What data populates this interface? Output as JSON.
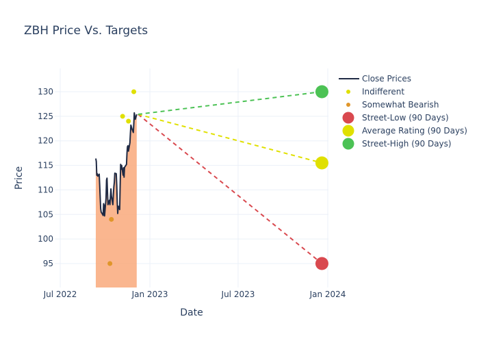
{
  "chart_data": {
    "type": "line",
    "title": "ZBH Price Vs. Targets",
    "xlabel": "Date",
    "ylabel": "Price",
    "x_ticks": [
      {
        "date": "2022-07-01",
        "label": "Jul 2022"
      },
      {
        "date": "2023-01-01",
        "label": "Jan 2023"
      },
      {
        "date": "2023-07-01",
        "label": "Jul 2023"
      },
      {
        "date": "2024-01-01",
        "label": "Jan 2024"
      }
    ],
    "y_ticks": [
      95,
      100,
      105,
      110,
      115,
      120,
      125,
      130
    ],
    "xlim": [
      "2022-06-15",
      "2024-01-25"
    ],
    "ylim": [
      90.2,
      134.8
    ],
    "grid": true,
    "legend_position": "top-right",
    "colors": {
      "close": "#1f2a44",
      "fill": "#f9a97b",
      "indifferent": "#e0e000",
      "somewhat_bearish": "#e0962a",
      "street_low": "#d9494f",
      "average": "#e0e000",
      "street_high": "#4cc255",
      "grid": "#ebf0f8"
    },
    "series": [
      {
        "name": "Close Prices",
        "type": "line-area",
        "points": [
          [
            "2022-09-12",
            116.4
          ],
          [
            "2022-09-13",
            115.8
          ],
          [
            "2022-09-14",
            113.0
          ],
          [
            "2022-09-15",
            113.3
          ],
          [
            "2022-09-16",
            112.8
          ],
          [
            "2022-09-19",
            113.2
          ],
          [
            "2022-09-20",
            111.0
          ],
          [
            "2022-09-21",
            108.5
          ],
          [
            "2022-09-22",
            106.2
          ],
          [
            "2022-09-23",
            105.5
          ],
          [
            "2022-09-26",
            105.0
          ],
          [
            "2022-09-27",
            104.8
          ],
          [
            "2022-09-28",
            107.2
          ],
          [
            "2022-09-29",
            106.9
          ],
          [
            "2022-09-30",
            104.7
          ],
          [
            "2022-10-03",
            108.3
          ],
          [
            "2022-10-04",
            112.0
          ],
          [
            "2022-10-05",
            112.4
          ],
          [
            "2022-10-06",
            109.5
          ],
          [
            "2022-10-07",
            107.0
          ],
          [
            "2022-10-10",
            107.9
          ],
          [
            "2022-10-11",
            107.0
          ],
          [
            "2022-10-12",
            108.5
          ],
          [
            "2022-10-13",
            110.2
          ],
          [
            "2022-10-14",
            108.8
          ],
          [
            "2022-10-17",
            107.0
          ],
          [
            "2022-10-18",
            109.0
          ],
          [
            "2022-10-19",
            110.6
          ],
          [
            "2022-10-20",
            111.5
          ],
          [
            "2022-10-21",
            113.4
          ],
          [
            "2022-10-24",
            113.3
          ],
          [
            "2022-10-25",
            111.0
          ],
          [
            "2022-10-26",
            107.5
          ],
          [
            "2022-10-27",
            105.2
          ],
          [
            "2022-10-28",
            106.7
          ],
          [
            "2022-10-31",
            106.0
          ],
          [
            "2022-11-01",
            110.8
          ],
          [
            "2022-11-02",
            115.2
          ],
          [
            "2022-11-03",
            114.2
          ],
          [
            "2022-11-04",
            115.0
          ],
          [
            "2022-11-07",
            113.0
          ],
          [
            "2022-11-08",
            114.5
          ],
          [
            "2022-11-09",
            112.6
          ],
          [
            "2022-11-10",
            114.6
          ],
          [
            "2022-11-14",
            115.2
          ],
          [
            "2022-11-15",
            117.5
          ],
          [
            "2022-11-16",
            118.8
          ],
          [
            "2022-11-17",
            119.0
          ],
          [
            "2022-11-18",
            117.9
          ],
          [
            "2022-11-21",
            119.6
          ],
          [
            "2022-11-22",
            121.5
          ],
          [
            "2022-11-23",
            123.2
          ],
          [
            "2022-11-25",
            122.5
          ],
          [
            "2022-11-28",
            121.7
          ],
          [
            "2022-11-29",
            123.5
          ],
          [
            "2022-11-30",
            125.7
          ],
          [
            "2022-12-01",
            125.0
          ],
          [
            "2022-12-02",
            124.4
          ],
          [
            "2022-12-05",
            125.4
          ]
        ]
      },
      {
        "name": "Indifferent",
        "type": "markers",
        "points": [
          [
            "2022-11-06",
            125.0
          ],
          [
            "2022-11-18",
            124.0
          ],
          [
            "2022-11-29",
            130.0
          ]
        ]
      },
      {
        "name": "Somewhat Bearish",
        "type": "markers",
        "points": [
          [
            "2022-10-11",
            95.0
          ],
          [
            "2022-10-14",
            104.0
          ]
        ]
      },
      {
        "name": "Street-Low (90 Days)",
        "type": "target",
        "start": [
          "2022-12-05",
          125.4
        ],
        "end": [
          "2023-12-20",
          95.0
        ]
      },
      {
        "name": "Average Rating (90 Days)",
        "type": "target",
        "start": [
          "2022-12-05",
          125.4
        ],
        "end": [
          "2023-12-20",
          115.5
        ]
      },
      {
        "name": "Street-High (90 Days)",
        "type": "target",
        "start": [
          "2022-12-05",
          125.4
        ],
        "end": [
          "2023-12-20",
          130.0
        ]
      }
    ],
    "legend": [
      {
        "label": "Close Prices",
        "kind": "line",
        "color_key": "close"
      },
      {
        "label": "Indifferent",
        "kind": "dot-small",
        "color_key": "indifferent"
      },
      {
        "label": "Somewhat Bearish",
        "kind": "dot-small",
        "color_key": "somewhat_bearish"
      },
      {
        "label": "Street-Low (90 Days)",
        "kind": "dot-large",
        "color_key": "street_low"
      },
      {
        "label": "Average Rating (90 Days)",
        "kind": "dot-large",
        "color_key": "average"
      },
      {
        "label": "Street-High (90 Days)",
        "kind": "dot-large",
        "color_key": "street_high"
      }
    ]
  }
}
